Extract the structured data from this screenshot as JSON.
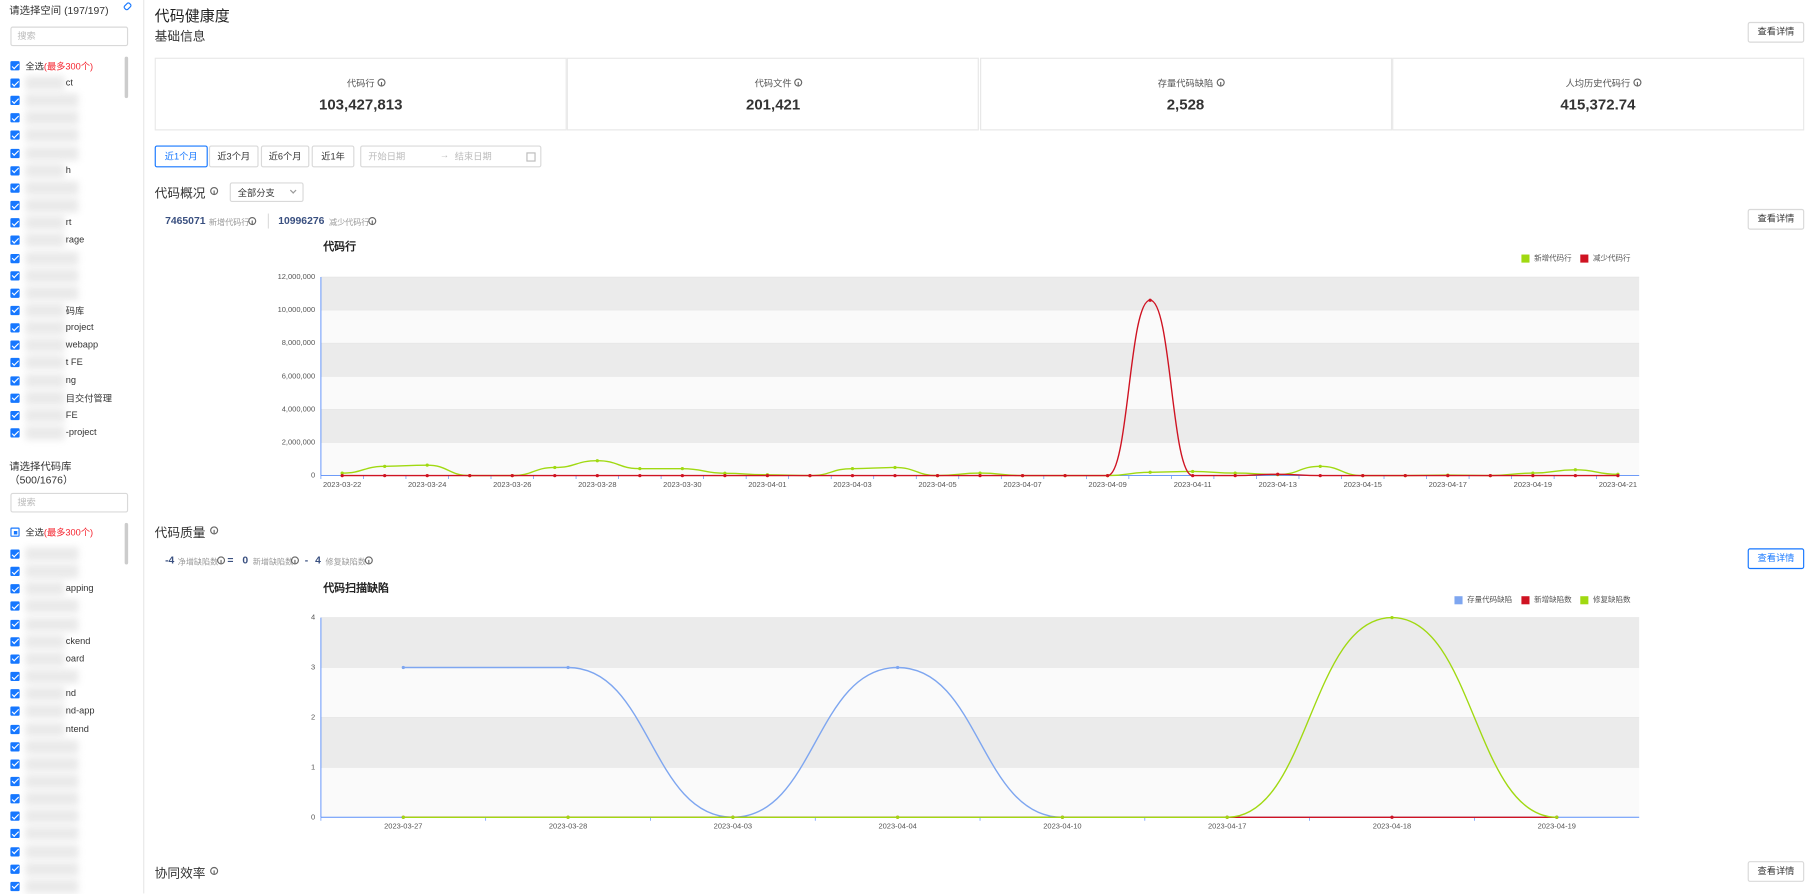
{
  "sidebar": {
    "workspace": {
      "title": "请选择空间 (197/197)",
      "search_placeholder": "搜索",
      "select_all": "全选",
      "limit": "(最多300个)",
      "items": [
        "ct",
        null,
        null,
        null,
        null,
        "h",
        null,
        null,
        "rt",
        "rage",
        null,
        null,
        null,
        "码库",
        "project",
        "webapp",
        "t FE",
        "ng",
        "目交付管理",
        "FE",
        "-project"
      ]
    },
    "repos": {
      "title": "请选择代码库",
      "count": "（500/1676）",
      "search_placeholder": "搜索",
      "select_all": "全选",
      "limit": "(最多300个)",
      "items": [
        null,
        null,
        "apping",
        null,
        null,
        "ckend",
        "oard",
        null,
        "nd",
        "nd-app",
        "ntend",
        null,
        null,
        null,
        null,
        null,
        null,
        null,
        null,
        null
      ]
    }
  },
  "header": {
    "title": "代码健康度"
  },
  "basic": {
    "title": "基础信息",
    "button": "查看详情",
    "stats": [
      {
        "label": "代码行",
        "value": "103,427,813"
      },
      {
        "label": "代码文件",
        "value": "201,421"
      },
      {
        "label": "存量代码缺陷",
        "value": "2,528"
      },
      {
        "label": "人均历史代码行",
        "value": "415,372.74"
      }
    ]
  },
  "filters": {
    "ranges": [
      "近1个月",
      "近3个月",
      "近6个月",
      "近1年"
    ],
    "start_placeholder": "开始日期",
    "arrow": "→",
    "end_placeholder": "结束日期"
  },
  "overview": {
    "title": "代码概况",
    "branch": "全部分支",
    "added": "7465071",
    "added_label": "新增代码行",
    "removed": "10996276",
    "removed_label": "减少代码行",
    "button": "查看详情"
  },
  "quality": {
    "title": "代码质量",
    "net": "-4",
    "net_label": "净增缺陷数",
    "eq": "=",
    "new": "0",
    "new_label": "新增缺陷数",
    "minus": "-",
    "fixed": "4",
    "fixed_label": "修复缺陷数",
    "button": "查看详情"
  },
  "collab": {
    "title": "协同效率",
    "button": "查看详情"
  },
  "chart_data": [
    {
      "type": "line",
      "title": "代码行",
      "smooth": true,
      "grid": true,
      "legend": "top-right",
      "categories": [
        "2023-03-22",
        null,
        "2023-03-24",
        null,
        "2023-03-26",
        null,
        "2023-03-28",
        null,
        "2023-03-30",
        null,
        "2023-04-01",
        null,
        "2023-04-03",
        null,
        "2023-04-05",
        null,
        "2023-04-07",
        null,
        "2023-04-09",
        null,
        "2023-04-11",
        null,
        "2023-04-13",
        null,
        "2023-04-15",
        null,
        "2023-04-17",
        null,
        "2023-04-19",
        null,
        "2023-04-21"
      ],
      "series": [
        {
          "name": "新增代码行",
          "color": "#a0d911",
          "values": [
            150000,
            560000,
            630000,
            0,
            0,
            490000,
            900000,
            420000,
            420000,
            140000,
            50000,
            0,
            420000,
            490000,
            0,
            150000,
            0,
            0,
            0,
            200000,
            250000,
            150000,
            60000,
            560000,
            0,
            0,
            30000,
            0,
            150000,
            350000,
            80000
          ]
        },
        {
          "name": "减少代码行",
          "color": "#cf1322",
          "values": [
            0,
            0,
            0,
            0,
            0,
            0,
            0,
            0,
            0,
            0,
            0,
            0,
            0,
            0,
            0,
            0,
            0,
            0,
            0,
            10600000,
            0,
            0,
            80000,
            0,
            0,
            0,
            0,
            0,
            0,
            0,
            0
          ]
        }
      ],
      "ylim": [
        0,
        12000000
      ],
      "yticks": [
        0,
        {
          "value": 2000000,
          "label": "2,000,000"
        },
        {
          "value": 4000000,
          "label": "4,000,000"
        },
        {
          "value": 6000000,
          "label": "6,000,000"
        },
        {
          "value": 8000000,
          "label": "8,000,000"
        },
        {
          "value": 10000000,
          "label": "10,000,000"
        },
        {
          "value": 12000000,
          "label": "12,000,000"
        }
      ]
    },
    {
      "type": "line",
      "title": "代码扫描缺陷",
      "smooth": true,
      "grid": true,
      "legend": "top-right",
      "categories": [
        "2023-03-27",
        "2023-03-28",
        "2023-04-03",
        "2023-04-04",
        "2023-04-10",
        "2023-04-17",
        "2023-04-18",
        "2023-04-19"
      ],
      "series": [
        {
          "name": "存量代码缺陷",
          "color": "#7ea6f0",
          "values": [
            3,
            3,
            0,
            3,
            0,
            0,
            0,
            0
          ]
        },
        {
          "name": "新增缺陷数",
          "color": "#cf1322",
          "values": [
            0,
            0,
            0,
            0,
            0,
            0,
            0,
            0
          ]
        },
        {
          "name": "修复缺陷数",
          "color": "#a0d911",
          "values": [
            0,
            0,
            0,
            0,
            0,
            0,
            4,
            0
          ]
        }
      ],
      "ylim": [
        0,
        4
      ],
      "yticks": [
        0,
        1,
        2,
        3,
        4
      ]
    }
  ]
}
